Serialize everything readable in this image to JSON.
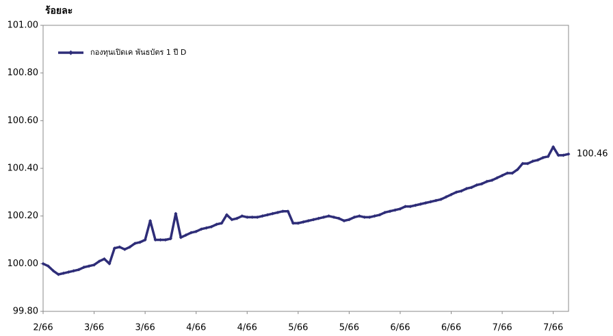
{
  "chart_data": {
    "type": "line",
    "y_label": "ร้อยละ",
    "categories": [
      "2/66",
      null,
      null,
      null,
      null,
      null,
      null,
      null,
      null,
      null,
      "3/66",
      null,
      null,
      null,
      null,
      null,
      null,
      null,
      null,
      null,
      "3/66",
      null,
      null,
      null,
      null,
      null,
      null,
      null,
      null,
      null,
      "4/66",
      null,
      null,
      null,
      null,
      null,
      null,
      null,
      null,
      null,
      "4/66",
      null,
      null,
      null,
      null,
      null,
      null,
      null,
      null,
      null,
      "5/66",
      null,
      null,
      null,
      null,
      null,
      null,
      null,
      null,
      null,
      "5/66",
      null,
      null,
      null,
      null,
      null,
      null,
      null,
      null,
      null,
      "6/66",
      null,
      null,
      null,
      null,
      null,
      null,
      null,
      null,
      null,
      "6/66",
      null,
      null,
      null,
      null,
      null,
      null,
      null,
      null,
      null,
      "7/66",
      null,
      null,
      null,
      null,
      null,
      null,
      null,
      null,
      null,
      "7/66",
      null,
      null,
      null
    ],
    "series": [
      {
        "name": "กองทุนเปิดเค พันธบัตร 1 ปี D",
        "color": "#2e2d78",
        "values": [
          100.0,
          99.99,
          99.97,
          99.955,
          99.96,
          99.965,
          99.97,
          99.975,
          99.985,
          99.99,
          99.995,
          100.01,
          100.02,
          100.0,
          100.065,
          100.07,
          100.06,
          100.07,
          100.085,
          100.09,
          100.1,
          100.18,
          100.1,
          100.1,
          100.1,
          100.105,
          100.21,
          100.11,
          100.12,
          100.13,
          100.135,
          100.145,
          100.15,
          100.155,
          100.165,
          100.17,
          100.205,
          100.185,
          100.19,
          100.2,
          100.195,
          100.195,
          100.195,
          100.2,
          100.205,
          100.21,
          100.215,
          100.22,
          100.22,
          100.17,
          100.17,
          100.175,
          100.18,
          100.185,
          100.19,
          100.195,
          100.2,
          100.195,
          100.19,
          100.18,
          100.185,
          100.195,
          100.2,
          100.195,
          100.195,
          100.2,
          100.205,
          100.215,
          100.22,
          100.225,
          100.23,
          100.24,
          100.24,
          100.245,
          100.25,
          100.255,
          100.26,
          100.265,
          100.27,
          100.28,
          100.29,
          100.3,
          100.305,
          100.315,
          100.32,
          100.33,
          100.335,
          100.345,
          100.35,
          100.36,
          100.37,
          100.38,
          100.38,
          100.395,
          100.42,
          100.42,
          100.43,
          100.435,
          100.445,
          100.45,
          100.49,
          100.455,
          100.455,
          100.46
        ],
        "value_labels": [
          null,
          null,
          null,
          null,
          null,
          null,
          null,
          null,
          null,
          null,
          null,
          null,
          null,
          null,
          null,
          null,
          null,
          null,
          null,
          null,
          null,
          null,
          null,
          null,
          null,
          null,
          null,
          null,
          null,
          null,
          null,
          null,
          null,
          null,
          null,
          null,
          null,
          null,
          null,
          null,
          null,
          null,
          null,
          null,
          null,
          null,
          null,
          null,
          null,
          null,
          null,
          null,
          null,
          null,
          null,
          null,
          null,
          null,
          null,
          null,
          null,
          null,
          null,
          null,
          null,
          null,
          null,
          null,
          null,
          null,
          null,
          null,
          null,
          null,
          null,
          null,
          null,
          null,
          null,
          null,
          null,
          null,
          null,
          null,
          null,
          null,
          null,
          null,
          null,
          null,
          null,
          null,
          null,
          null,
          null,
          null,
          null,
          null,
          null,
          null,
          null,
          null,
          null,
          "100.46"
        ]
      }
    ],
    "ylim": [
      99.8,
      101.0
    ],
    "yticks": [
      {
        "value": 99.8,
        "label": "99.80"
      },
      {
        "value": 100.0,
        "label": "100.00"
      },
      {
        "value": 100.2,
        "label": "100.20"
      },
      {
        "value": 100.4,
        "label": "100.40"
      },
      {
        "value": 100.6,
        "label": "100.60"
      },
      {
        "value": 100.8,
        "label": "100.80"
      },
      {
        "value": 101.0,
        "label": "101.00"
      }
    ],
    "legend": "top-left"
  }
}
